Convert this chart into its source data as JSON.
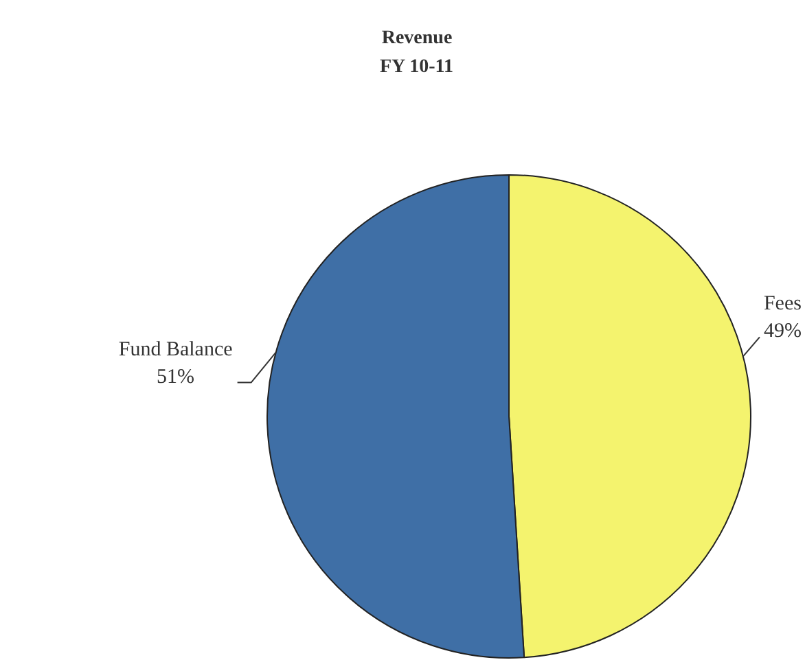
{
  "chart_data": {
    "type": "pie",
    "title": "Revenue\nFY 10-11",
    "categories": [
      "Fees",
      "Fund Balance"
    ],
    "values": [
      49,
      51
    ],
    "value_labels": [
      "49%",
      "51%"
    ],
    "colors": [
      "#f4f36e",
      "#3f6fa6"
    ]
  }
}
